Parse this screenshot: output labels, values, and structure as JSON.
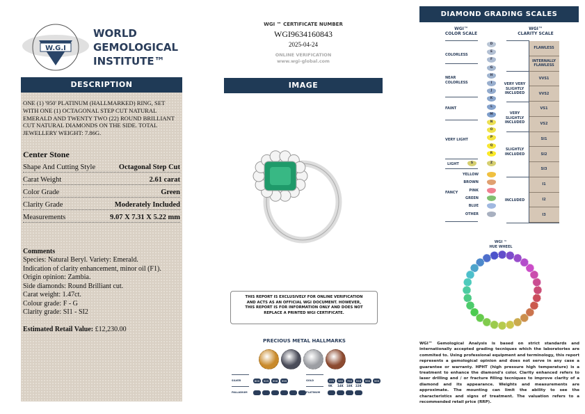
{
  "logo": {
    "seal_text": "WORLD GEMOLOGICAL INSTITUTE",
    "seal_abbr": "W.G.I",
    "name_lines": [
      "WORLD",
      "GEMOLOGICAL",
      "INSTITUTE™"
    ]
  },
  "description": {
    "header": "DESCRIPTION",
    "text": "ONE (1) '950' PLATINUM (HALLMARKED) RING, SET WITH ONE (1) OCTAGONAL STEP CUT NATURAL EMERALD AND TWENTY TWO (22) ROUND BRILLIANT CUT NATURAL DIAMONDS ON THE SIDE. TOTAL JEWELLERY WEIGHT: 7.86g.",
    "center_stone_title": "Center Stone",
    "specs": [
      {
        "label": "Shape And Cutting Style",
        "value": "Octagonal Step Cut"
      },
      {
        "label": "Carat Weight",
        "value": "2.61 carat"
      },
      {
        "label": "Color Grade",
        "value": "Green"
      },
      {
        "label": "Clarity Grade",
        "value": "Moderately Included"
      },
      {
        "label": "Measurements",
        "value": "9.07 X 7.31 X 5.22 mm"
      }
    ],
    "comments_title": "Comments",
    "comments": [
      "Species: Natural Beryl. Variety: Emerald.",
      "Indication of clarity enhancement, minor oil (F1).",
      "Origin opinion: Zambia.",
      "Side diamonds: Round Brilliant cut.",
      "Carat weight: 1.47ct.",
      "Colour grade: F - G",
      "Clarity grade: SI1 - SI2"
    ],
    "retail_label": "Estimated Retail Value:",
    "retail_value": "£12,230.00"
  },
  "certificate": {
    "label": "WGI ™ CERTIFICATE NUMBER",
    "number": "WGI9634160843",
    "date": "2025-04-24",
    "verification_label": "ONLINE VERIFICATION",
    "url": "www.wgi-global.com"
  },
  "image_section": {
    "header": "IMAGE",
    "disclaimer": "THIS REPORT IS EXCLUSIVELY FOR ONLINE VERIFICATION AND ACTS AS AN OFFICIAL WGI DOCUMENT. HOWEVER, THIS REPORT IS FOR INFORMATION ONLY AND DOES NOT REPLACE A PRINTED WGI CERTIFICATE."
  },
  "hallmarks": {
    "title": "PRECIOUS METAL HALLMARKS",
    "medal_colors": [
      "#c98a2b",
      "#4b4d5a",
      "#9c9ea3",
      "#8c4a30"
    ],
    "silver": {
      "label": "SILVER",
      "marks": [
        "800",
        "925",
        "958",
        "999"
      ]
    },
    "gold": {
      "label": "GOLD",
      "marks": [
        "375",
        "585",
        "750",
        "916",
        "990",
        "999"
      ],
      "karats": [
        "9K",
        "14K",
        "18K",
        "22K"
      ]
    },
    "palladium": {
      "label": "PALLADIUM",
      "count": 6
    },
    "platinum": {
      "label": "PLATINUM",
      "count": 4
    }
  },
  "scales": {
    "header": "DIAMOND GRADING  SCALES",
    "color_title": [
      "WGI™",
      "COLOR SCALE"
    ],
    "clarity_title": [
      "WGI™",
      "CLARITY SCALE"
    ],
    "color_letters": [
      "D",
      "E",
      "F",
      "G",
      "H",
      "I",
      "J",
      "K",
      "L",
      "M",
      "N",
      "O",
      "P",
      "Q",
      "R"
    ],
    "light_letters": [
      "S",
      "Z"
    ],
    "color_groups": [
      "COLORLESS",
      "NEAR COLORLESS",
      "FAINT",
      "VERY LIGHT",
      "LIGHT"
    ],
    "fancy_label": "FANCY",
    "fancy": [
      {
        "name": "YELLOW",
        "color": "#f0c040"
      },
      {
        "name": "BROWN",
        "color": "#e0a070"
      },
      {
        "name": "PINK",
        "color": "#f08090"
      },
      {
        "name": "GREEN",
        "color": "#80c070"
      },
      {
        "name": "BLUE",
        "color": "#a0b8e0"
      },
      {
        "name": "OTHER",
        "color": "#a8b0c0"
      }
    ],
    "clarity_grades": [
      "FLAWLESS",
      "INTERNALLY FLAWLESS",
      "VVS1",
      "VVS2",
      "VS1",
      "VS2",
      "SI1",
      "SI2",
      "SI3",
      "I1",
      "I2",
      "I3"
    ],
    "clarity_groups": [
      "VERY VERY SLIGHTLY INCLUDED",
      "VERY SLIGHTLY INCLUDED",
      "SLIGHTLY INCLUDED",
      "INCLUDED"
    ]
  },
  "hue_wheel": {
    "title": [
      "WGI ™",
      "HUE WHEEL"
    ]
  },
  "disclaimer": "WGI™ Gemological Analysis is based on strict standards and internationally accepted grading tecniques which the laboratories are commited to. Using professional equipment and terminology, this report represents a gemological opinion and does not serve in any case a guarantee or warranty. HPHT (high pressure high temperature) is a treatment to enhance the diamond's color. Clarity enhanced refers to laser drilling and / or fracture filling tecniques to improve clarity of a diamond and its appearance. Weights and measurements are approximate. The mounting can limit the ability to see the characteristics and signs of treatment. The valuation refers to a recommended retail price (RRP)."
}
